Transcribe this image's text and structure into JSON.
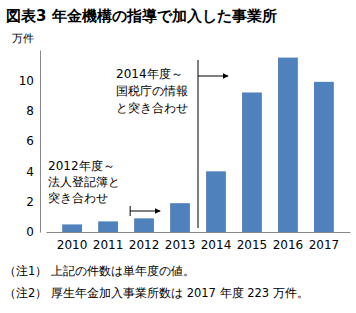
{
  "chart_data": {
    "type": "bar",
    "title": "図表3 年金機構の指導で加入した事業所",
    "y_label": "万件",
    "categories": [
      "2010",
      "2011",
      "2012",
      "2013",
      "2014",
      "2015",
      "2016",
      "2017"
    ],
    "values": [
      0.5,
      0.7,
      0.9,
      1.9,
      4.0,
      9.2,
      11.5,
      9.9
    ],
    "color": "#4f81bd",
    "ylim": [
      0,
      12
    ],
    "yticks": [
      0,
      2,
      4,
      6,
      8,
      10
    ],
    "grid": false,
    "annotations": [
      {
        "lines": [
          "2012年度～",
          "法人登記簿と",
          "突き合わせ"
        ]
      },
      {
        "lines": [
          "2014年度～",
          "国税庁の情報",
          "と突き合わせ"
        ]
      }
    ],
    "notes": [
      "（注1） 上記の件数は単年度の値。",
      "（注2） 厚生年金加入事業所数は 2017 年度 223 万件。"
    ]
  }
}
